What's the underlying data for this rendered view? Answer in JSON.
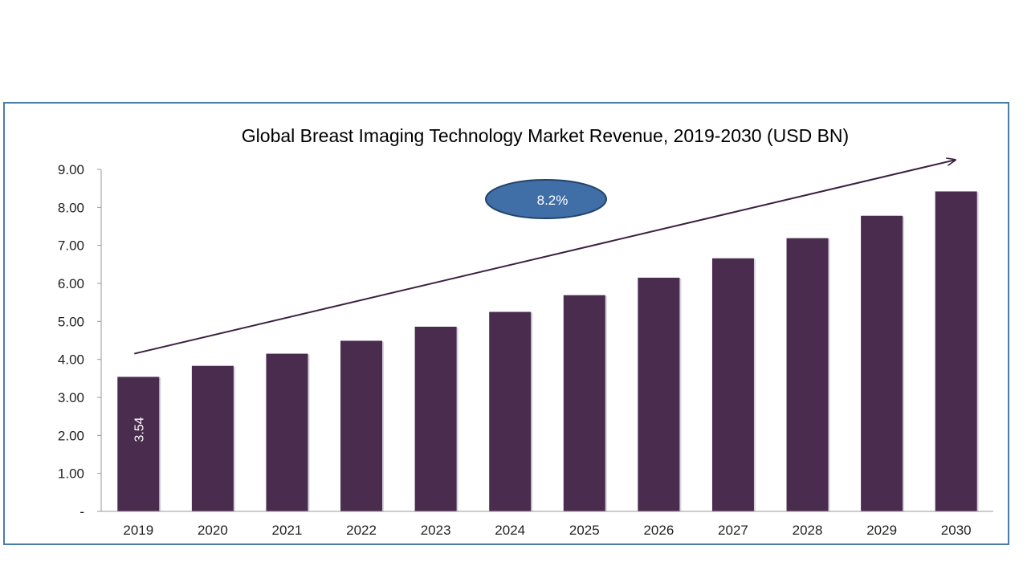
{
  "chart_data": {
    "type": "bar",
    "title": "Global Breast Imaging Technology Market Revenue, 2019-2030 (USD BN)",
    "categories": [
      "2019",
      "2020",
      "2021",
      "2022",
      "2023",
      "2024",
      "2025",
      "2026",
      "2027",
      "2028",
      "2029",
      "2030"
    ],
    "values": [
      3.54,
      3.83,
      4.15,
      4.49,
      4.86,
      5.25,
      5.69,
      6.15,
      6.66,
      7.19,
      7.78,
      8.42
    ],
    "y_ticks": [
      "-",
      "1.00",
      "2.00",
      "3.00",
      "4.00",
      "5.00",
      "6.00",
      "7.00",
      "8.00",
      "9.00"
    ],
    "ylim": [
      0,
      9
    ],
    "data_labels": [
      {
        "category": "2019",
        "text": "3.54"
      }
    ],
    "annotation": {
      "text": "8.2%"
    },
    "trend_arrow": {
      "from": [
        2019,
        4.15
      ],
      "to": [
        2030,
        9.25
      ]
    },
    "grid": false,
    "legend": "none",
    "colors": {
      "bar": "#4a2c4f",
      "frame_border": "#4a7ca8",
      "ellipse_fill": "#3f6fa6",
      "ellipse_stroke": "#23436b",
      "arrow": "#3b2040"
    }
  }
}
